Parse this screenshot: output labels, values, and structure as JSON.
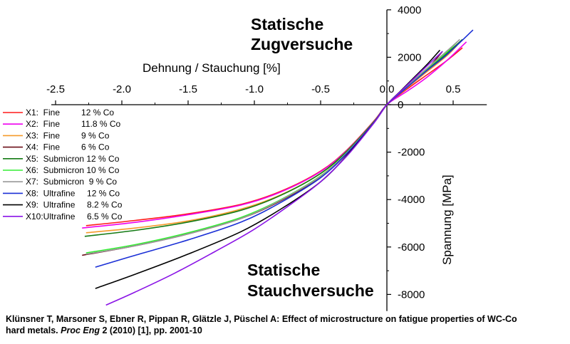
{
  "chart_data": {
    "type": "line",
    "title_top": [
      "Statische",
      "Zugversuche"
    ],
    "title_bottom": [
      "Statische",
      "Stauchversuche"
    ],
    "xlabel": "Dehnung / Stauchung [%]",
    "ylabel": "Spannung [MPa]",
    "xlim": [
      -2.5,
      0.7
    ],
    "ylim": [
      -8700,
      4000
    ],
    "x_ticks": [
      "-2.5",
      "-2.0",
      "-1.5",
      "-1.0",
      "-0.5",
      "0.0",
      "0.5"
    ],
    "x_tick_values": [
      -2.5,
      -2.0,
      -1.5,
      -1.0,
      -0.5,
      0.0,
      0.5
    ],
    "y_ticks": [
      "4000",
      "2000",
      "0",
      "-2000",
      "-4000",
      "-6000",
      "-8000"
    ],
    "y_tick_values": [
      4000,
      2000,
      0,
      -2000,
      -4000,
      -6000,
      -8000
    ],
    "series": [
      {
        "name": "X1:  Fine         12 % Co",
        "color": "#ff1a1a",
        "x": [
          -2.27,
          -1.9,
          -1.5,
          -1.1,
          -0.8,
          -0.5,
          -0.3,
          -0.1,
          0,
          0.15,
          0.3,
          0.45,
          0.57
        ],
        "y": [
          -5100,
          -4880,
          -4600,
          -4200,
          -3650,
          -2800,
          -1900,
          -700,
          0,
          650,
          1250,
          1850,
          2400
        ]
      },
      {
        "name": "X2:  Fine         11.8 % Co",
        "color": "#ee00ee",
        "x": [
          -2.3,
          -1.9,
          -1.5,
          -1.1,
          -0.8,
          -0.5,
          -0.3,
          -0.1,
          0,
          0.15,
          0.3,
          0.45,
          0.6
        ],
        "y": [
          -5200,
          -4960,
          -4640,
          -4230,
          -3680,
          -2820,
          -1920,
          -720,
          0,
          560,
          1150,
          1850,
          2650
        ]
      },
      {
        "name": "X3:  Fine         9 % Co",
        "color": "#f59a2a",
        "x": [
          -2.27,
          -1.9,
          -1.5,
          -1.1,
          -0.8,
          -0.5,
          -0.3,
          -0.1,
          0,
          0.15,
          0.3,
          0.45,
          0.53
        ],
        "y": [
          -5400,
          -5200,
          -4900,
          -4400,
          -3800,
          -2900,
          -1950,
          -730,
          0,
          700,
          1380,
          2050,
          2500
        ]
      },
      {
        "name": "X4:  Fine         6 % Co",
        "color": "#6b0f18",
        "x": [
          -2.3,
          -1.9,
          -1.5,
          -1.1,
          -0.8,
          -0.5,
          -0.3,
          -0.1,
          0,
          0.1,
          0.2,
          0.32,
          0.42
        ],
        "y": [
          -6350,
          -5950,
          -5450,
          -4800,
          -4050,
          -3050,
          -2050,
          -760,
          0,
          500,
          1000,
          1600,
          2250
        ]
      },
      {
        "name": "X5:  Submicron 12 % Co",
        "color": "#147a14",
        "x": [
          -2.28,
          -1.9,
          -1.5,
          -1.1,
          -0.8,
          -0.5,
          -0.3,
          -0.1,
          0,
          0.15,
          0.3,
          0.45,
          0.57
        ],
        "y": [
          -5550,
          -5300,
          -4950,
          -4450,
          -3820,
          -2900,
          -1950,
          -730,
          0,
          740,
          1450,
          2150,
          2750
        ]
      },
      {
        "name": "X6:  Submicron 10 % Co",
        "color": "#33ee33",
        "x": [
          -2.27,
          -1.9,
          -1.5,
          -1.1,
          -0.8,
          -0.5,
          -0.3,
          -0.1,
          0,
          0.15,
          0.3,
          0.45,
          0.53
        ],
        "y": [
          -6250,
          -5900,
          -5400,
          -4750,
          -4000,
          -3000,
          -2000,
          -750,
          0,
          760,
          1500,
          2200,
          2650
        ]
      },
      {
        "name": "X7:  Submicron  9 % Co",
        "color": "#999999",
        "x": [
          -2.27,
          -1.9,
          -1.5,
          -1.1,
          -0.8,
          -0.5,
          -0.3,
          -0.1,
          0,
          0.15,
          0.3,
          0.45,
          0.55
        ],
        "y": [
          -6300,
          -5950,
          -5450,
          -4800,
          -4020,
          -3020,
          -2010,
          -755,
          0,
          780,
          1520,
          2250,
          2750
        ]
      },
      {
        "name": "X8:  Ultrafine     12 % Co",
        "color": "#1a2fd6",
        "x": [
          -2.2,
          -1.9,
          -1.5,
          -1.1,
          -0.8,
          -0.5,
          -0.3,
          -0.1,
          0,
          0.15,
          0.3,
          0.45,
          0.65
        ],
        "y": [
          -6850,
          -6350,
          -5700,
          -4950,
          -4120,
          -3080,
          -2040,
          -760,
          0,
          720,
          1430,
          2100,
          3150
        ]
      },
      {
        "name": "X9:  Ultrafine     8.2 % Co",
        "color": "#000000",
        "x": [
          -2.2,
          -1.9,
          -1.5,
          -1.1,
          -0.8,
          -0.5,
          -0.3,
          -0.1,
          0,
          0.1,
          0.2,
          0.3,
          0.4
        ],
        "y": [
          -7750,
          -7150,
          -6300,
          -5350,
          -4400,
          -3250,
          -2120,
          -780,
          0,
          560,
          1120,
          1680,
          2300
        ]
      },
      {
        "name": "X10:Ultrafine     6.5 % Co",
        "color": "#8a14e6",
        "x": [
          -2.12,
          -1.9,
          -1.6,
          -1.3,
          -1.0,
          -0.7,
          -0.5,
          -0.3,
          -0.1,
          0,
          0.1,
          0.2,
          0.3,
          0.42
        ],
        "y": [
          -8450,
          -7900,
          -7100,
          -6200,
          -5250,
          -4100,
          -3250,
          -2150,
          -790,
          0,
          540,
          1080,
          1620,
          2250
        ]
      }
    ]
  },
  "citation": {
    "line1": "Klünsner T, Marsoner S, Ebner R, Pippan R, Glätzle J, Püschel A: Effect of microstructure on fatigue properties of WC-Co",
    "line2_start": "hard metals.",
    "journal": "Proc Eng",
    "line2_end": "2 (2010) [1], pp. 2001-10"
  }
}
